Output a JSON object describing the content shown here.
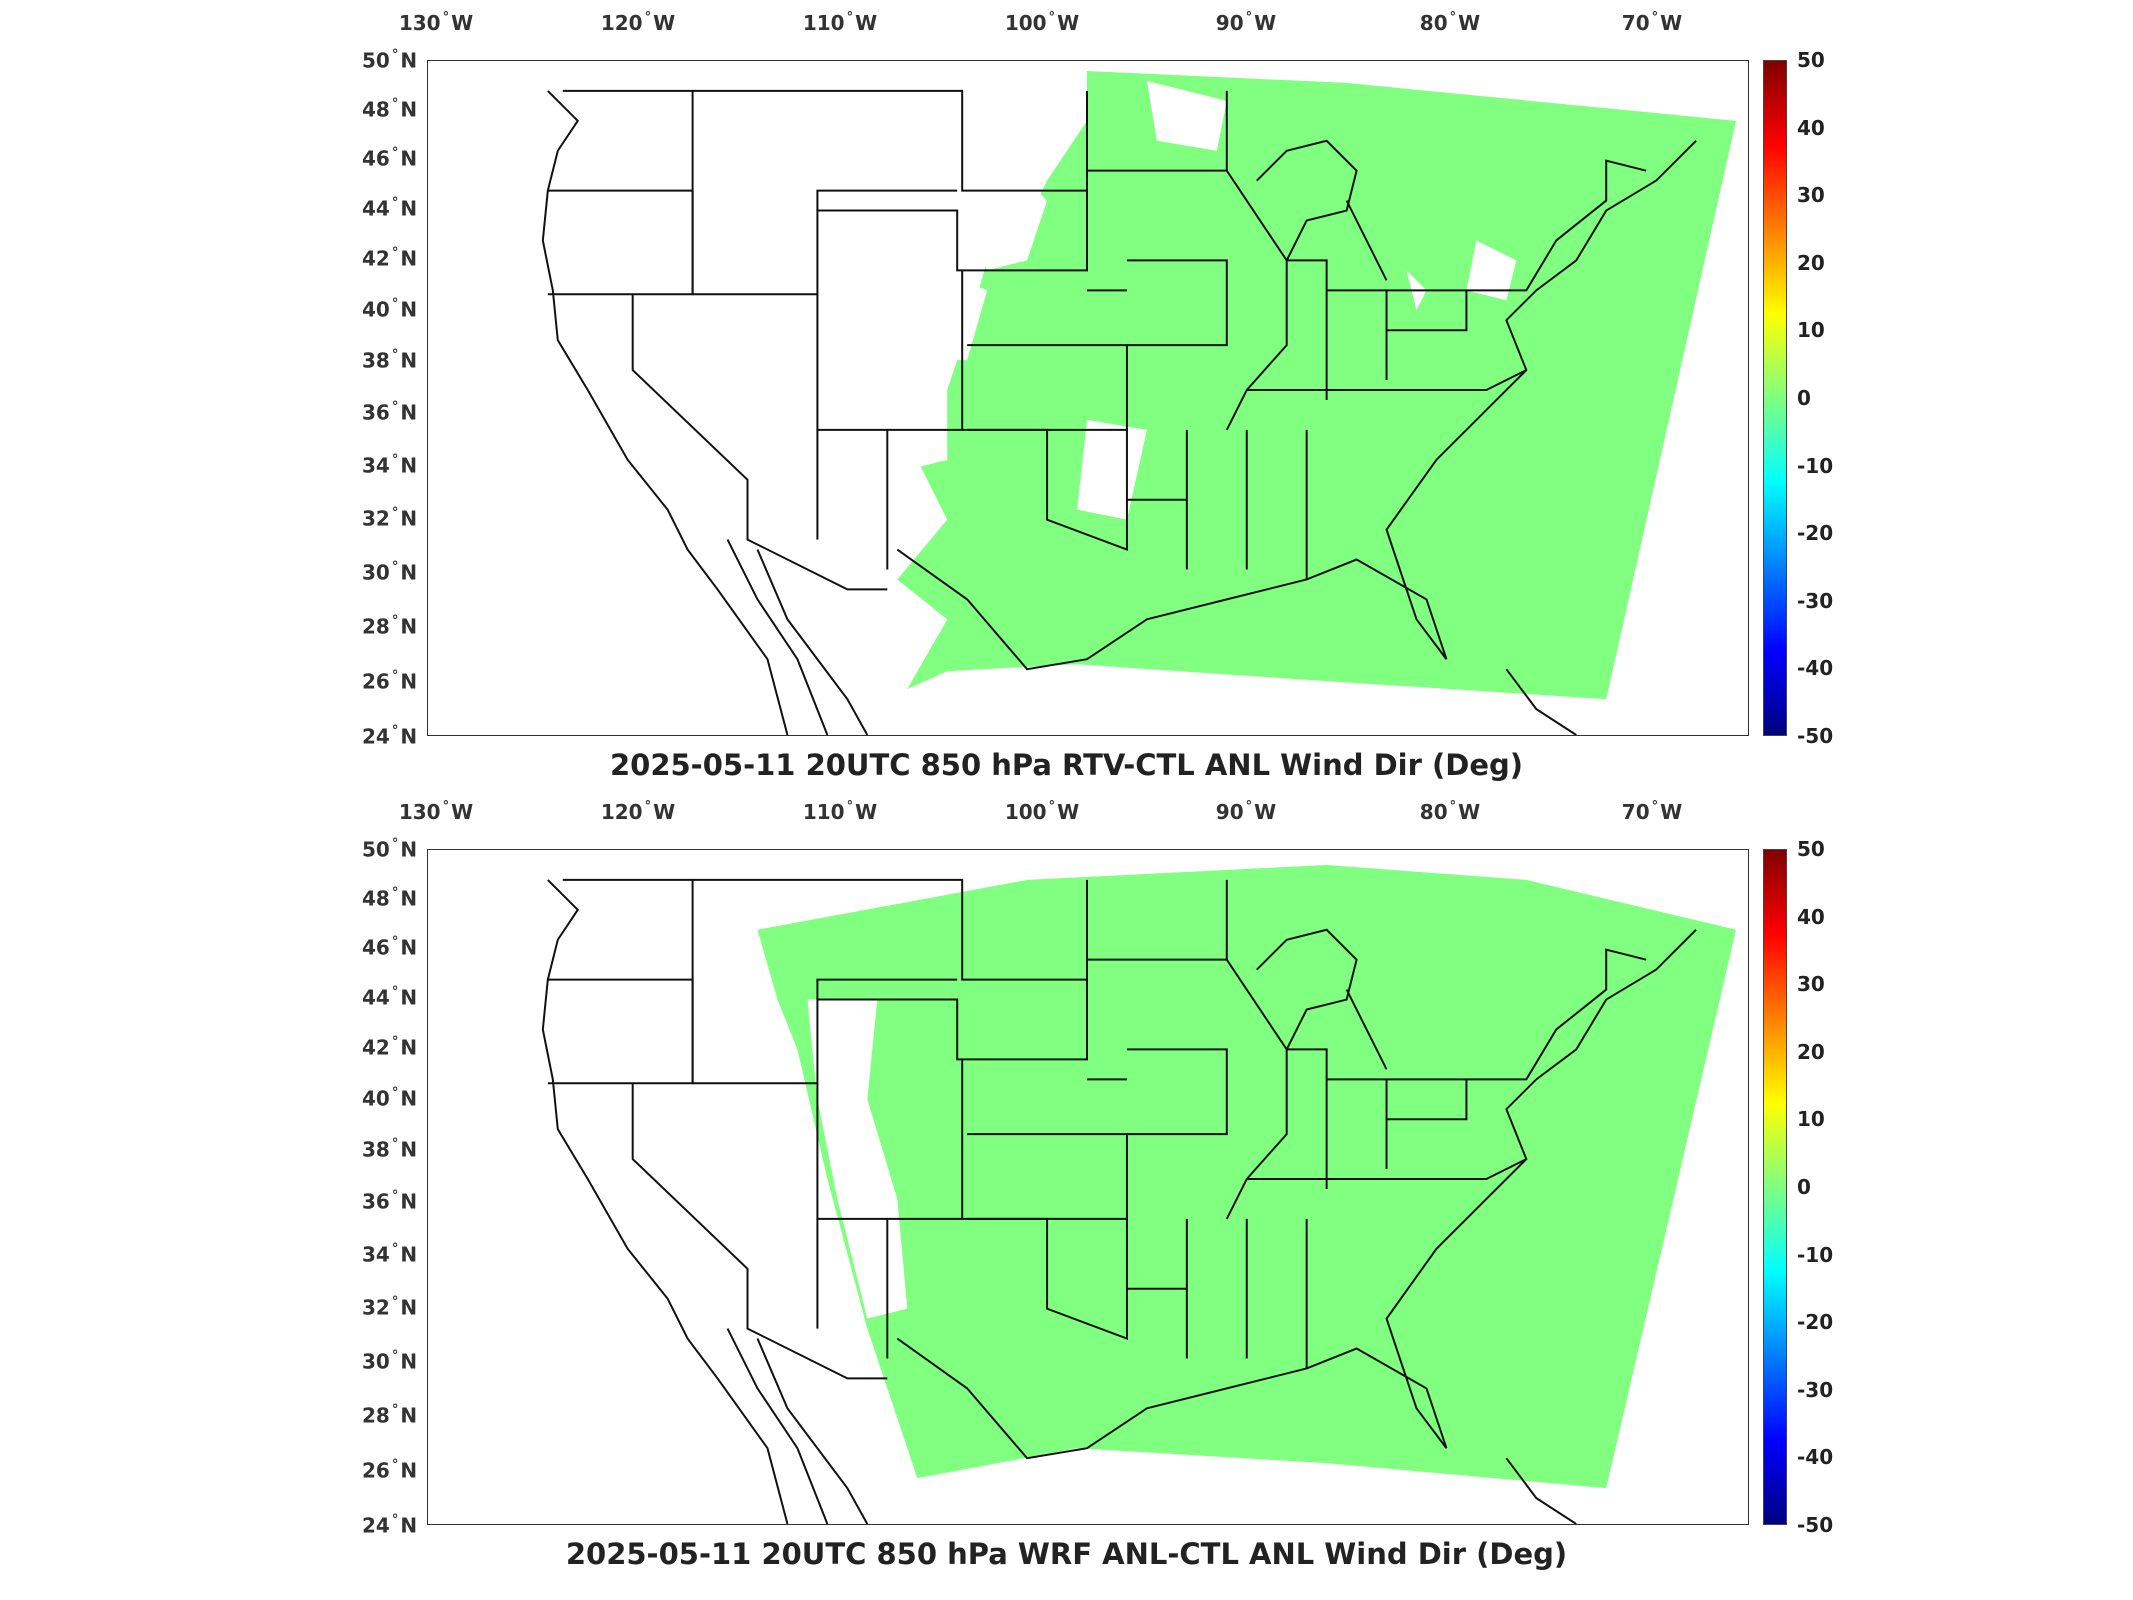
{
  "maps": [
    {
      "title": "2025-05-11 20UTC 850 hPa RTV-CTL ANL Wind Dir (Deg)",
      "field_color": "#80ff80",
      "coverage": "partial"
    },
    {
      "title": "2025-05-11 20UTC 850 hPa WRF ANL-CTL ANL Wind Dir (Deg)",
      "field_color": "#80ff80",
      "coverage": "near-full"
    }
  ],
  "longitude_labels": [
    {
      "num": "130",
      "dir": "W"
    },
    {
      "num": "120",
      "dir": "W"
    },
    {
      "num": "110",
      "dir": "W"
    },
    {
      "num": "100",
      "dir": "W"
    },
    {
      "num": "90",
      "dir": "W"
    },
    {
      "num": "80",
      "dir": "W"
    },
    {
      "num": "70",
      "dir": "W"
    }
  ],
  "latitude_labels": [
    {
      "num": "50",
      "dir": "N"
    },
    {
      "num": "48",
      "dir": "N"
    },
    {
      "num": "46",
      "dir": "N"
    },
    {
      "num": "44",
      "dir": "N"
    },
    {
      "num": "42",
      "dir": "N"
    },
    {
      "num": "40",
      "dir": "N"
    },
    {
      "num": "38",
      "dir": "N"
    },
    {
      "num": "36",
      "dir": "N"
    },
    {
      "num": "34",
      "dir": "N"
    },
    {
      "num": "32",
      "dir": "N"
    },
    {
      "num": "30",
      "dir": "N"
    },
    {
      "num": "28",
      "dir": "N"
    },
    {
      "num": "26",
      "dir": "N"
    },
    {
      "num": "24",
      "dir": "N"
    }
  ],
  "colorbar": {
    "ticks": [
      "50",
      "40",
      "30",
      "20",
      "10",
      "0",
      "-10",
      "-20",
      "-30",
      "-40",
      "-50"
    ],
    "colors": [
      "#800000",
      "#ff0000",
      "#ff8000",
      "#ffff00",
      "#80ff80",
      "#00ffff",
      "#0080ff",
      "#0000ff",
      "#000080"
    ]
  }
}
